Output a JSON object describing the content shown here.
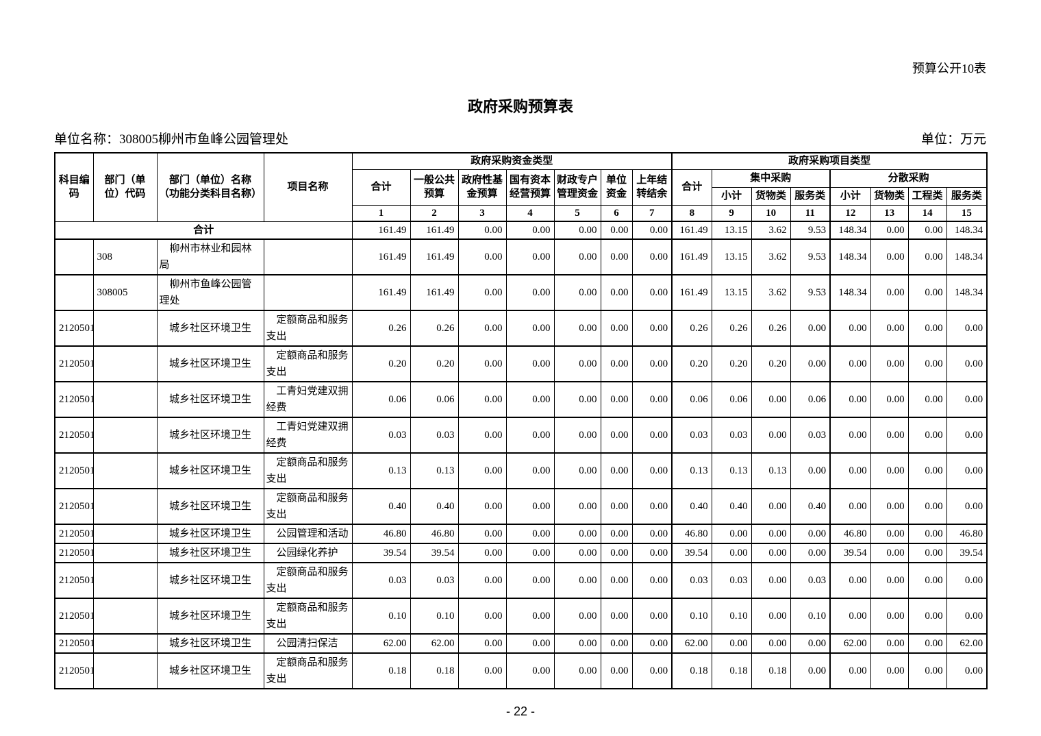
{
  "page": {
    "form_label": "预算公开10表",
    "title": "政府采购预算表",
    "unit_name": "单位名称：308005柳州市鱼峰公园管理处",
    "unit": "单位：万元",
    "page_number": "- 22 -"
  },
  "table": {
    "header": {
      "subject_code": "科目编码",
      "dept_code": "部门（单\n位）代码",
      "dept_name": "部门（单位）名称\n（功能分类科目名称）",
      "project_name": "项目名称",
      "fund_group": "政府采购资金类型",
      "project_group": "政府采购项目类型",
      "fund_cols": [
        "合计",
        "一般公共\n预算",
        "政府性基\n金预算",
        "国有资本\n经营预算",
        "财政专户\n管理资金",
        "单位\n资金",
        "上年结\n转结余"
      ],
      "project_total": "合计",
      "centralized": "集中采购",
      "centralized_cols": [
        "小计",
        "货物类",
        "服务类"
      ],
      "decentralized": "分散采购",
      "decentralized_cols": [
        "小计",
        "货物类",
        "工程类",
        "服务类"
      ],
      "numbers": [
        "1",
        "2",
        "3",
        "4",
        "5",
        "6",
        "7",
        "8",
        "9",
        "10",
        "11",
        "12",
        "13",
        "14",
        "15"
      ]
    },
    "rows": [
      {
        "type": "total",
        "label": "合计",
        "values": [
          "161.49",
          "161.49",
          "0.00",
          "0.00",
          "0.00",
          "0.00",
          "0.00",
          "161.49",
          "13.15",
          "3.62",
          "9.53",
          "148.34",
          "0.00",
          "0.00",
          "148.34"
        ]
      },
      {
        "type": "dept",
        "dept_code": "308",
        "dept_name": "柳州市林业和园林\n局",
        "values": [
          "161.49",
          "161.49",
          "0.00",
          "0.00",
          "0.00",
          "0.00",
          "0.00",
          "161.49",
          "13.15",
          "3.62",
          "9.53",
          "148.34",
          "0.00",
          "0.00",
          "148.34"
        ]
      },
      {
        "type": "dept",
        "dept_code": "308005",
        "dept_name": "柳州市鱼峰公园管\n理处",
        "values": [
          "161.49",
          "161.49",
          "0.00",
          "0.00",
          "0.00",
          "0.00",
          "0.00",
          "161.49",
          "13.15",
          "3.62",
          "9.53",
          "148.34",
          "0.00",
          "0.00",
          "148.34"
        ]
      },
      {
        "type": "item",
        "subject_code": "2120501",
        "dept_name": "城乡社区环境卫生",
        "project": "定额商品和服务支出",
        "values": [
          "0.26",
          "0.26",
          "0.00",
          "0.00",
          "0.00",
          "0.00",
          "0.00",
          "0.26",
          "0.26",
          "0.26",
          "0.00",
          "0.00",
          "0.00",
          "0.00",
          "0.00"
        ]
      },
      {
        "type": "item",
        "subject_code": "2120501",
        "dept_name": "城乡社区环境卫生",
        "project": "定额商品和服务支出",
        "values": [
          "0.20",
          "0.20",
          "0.00",
          "0.00",
          "0.00",
          "0.00",
          "0.00",
          "0.20",
          "0.20",
          "0.20",
          "0.00",
          "0.00",
          "0.00",
          "0.00",
          "0.00"
        ]
      },
      {
        "type": "item",
        "subject_code": "2120501",
        "dept_name": "城乡社区环境卫生",
        "project": "工青妇党建双拥经费",
        "values": [
          "0.06",
          "0.06",
          "0.00",
          "0.00",
          "0.00",
          "0.00",
          "0.00",
          "0.06",
          "0.06",
          "0.00",
          "0.06",
          "0.00",
          "0.00",
          "0.00",
          "0.00"
        ]
      },
      {
        "type": "item",
        "subject_code": "2120501",
        "dept_name": "城乡社区环境卫生",
        "project": "工青妇党建双拥经费",
        "values": [
          "0.03",
          "0.03",
          "0.00",
          "0.00",
          "0.00",
          "0.00",
          "0.00",
          "0.03",
          "0.03",
          "0.00",
          "0.03",
          "0.00",
          "0.00",
          "0.00",
          "0.00"
        ]
      },
      {
        "type": "item",
        "subject_code": "2120501",
        "dept_name": "城乡社区环境卫生",
        "project": "定额商品和服务支出",
        "values": [
          "0.13",
          "0.13",
          "0.00",
          "0.00",
          "0.00",
          "0.00",
          "0.00",
          "0.13",
          "0.13",
          "0.13",
          "0.00",
          "0.00",
          "0.00",
          "0.00",
          "0.00"
        ]
      },
      {
        "type": "item",
        "subject_code": "2120501",
        "dept_name": "城乡社区环境卫生",
        "project": "定额商品和服务支出",
        "values": [
          "0.40",
          "0.40",
          "0.00",
          "0.00",
          "0.00",
          "0.00",
          "0.00",
          "0.40",
          "0.40",
          "0.00",
          "0.40",
          "0.00",
          "0.00",
          "0.00",
          "0.00"
        ]
      },
      {
        "type": "item",
        "subject_code": "2120501",
        "dept_name": "城乡社区环境卫生",
        "project": "公园管理和活动",
        "values": [
          "46.80",
          "46.80",
          "0.00",
          "0.00",
          "0.00",
          "0.00",
          "0.00",
          "46.80",
          "0.00",
          "0.00",
          "0.00",
          "46.80",
          "0.00",
          "0.00",
          "46.80"
        ]
      },
      {
        "type": "item",
        "subject_code": "2120501",
        "dept_name": "城乡社区环境卫生",
        "project": "公园绿化养护",
        "values": [
          "39.54",
          "39.54",
          "0.00",
          "0.00",
          "0.00",
          "0.00",
          "0.00",
          "39.54",
          "0.00",
          "0.00",
          "0.00",
          "39.54",
          "0.00",
          "0.00",
          "39.54"
        ]
      },
      {
        "type": "item",
        "subject_code": "2120501",
        "dept_name": "城乡社区环境卫生",
        "project": "定额商品和服务支出",
        "values": [
          "0.03",
          "0.03",
          "0.00",
          "0.00",
          "0.00",
          "0.00",
          "0.00",
          "0.03",
          "0.03",
          "0.00",
          "0.03",
          "0.00",
          "0.00",
          "0.00",
          "0.00"
        ]
      },
      {
        "type": "item",
        "subject_code": "2120501",
        "dept_name": "城乡社区环境卫生",
        "project": "定额商品和服务支出",
        "values": [
          "0.10",
          "0.10",
          "0.00",
          "0.00",
          "0.00",
          "0.00",
          "0.00",
          "0.10",
          "0.10",
          "0.00",
          "0.10",
          "0.00",
          "0.00",
          "0.00",
          "0.00"
        ]
      },
      {
        "type": "item",
        "subject_code": "2120501",
        "dept_name": "城乡社区环境卫生",
        "project": "公园清扫保洁",
        "values": [
          "62.00",
          "62.00",
          "0.00",
          "0.00",
          "0.00",
          "0.00",
          "0.00",
          "62.00",
          "0.00",
          "0.00",
          "0.00",
          "62.00",
          "0.00",
          "0.00",
          "62.00"
        ]
      },
      {
        "type": "item",
        "subject_code": "2120501",
        "dept_name": "城乡社区环境卫生",
        "project": "定额商品和服务支出",
        "values": [
          "0.18",
          "0.18",
          "0.00",
          "0.00",
          "0.00",
          "0.00",
          "0.00",
          "0.18",
          "0.18",
          "0.18",
          "0.00",
          "0.00",
          "0.00",
          "0.00",
          "0.00"
        ]
      }
    ]
  }
}
